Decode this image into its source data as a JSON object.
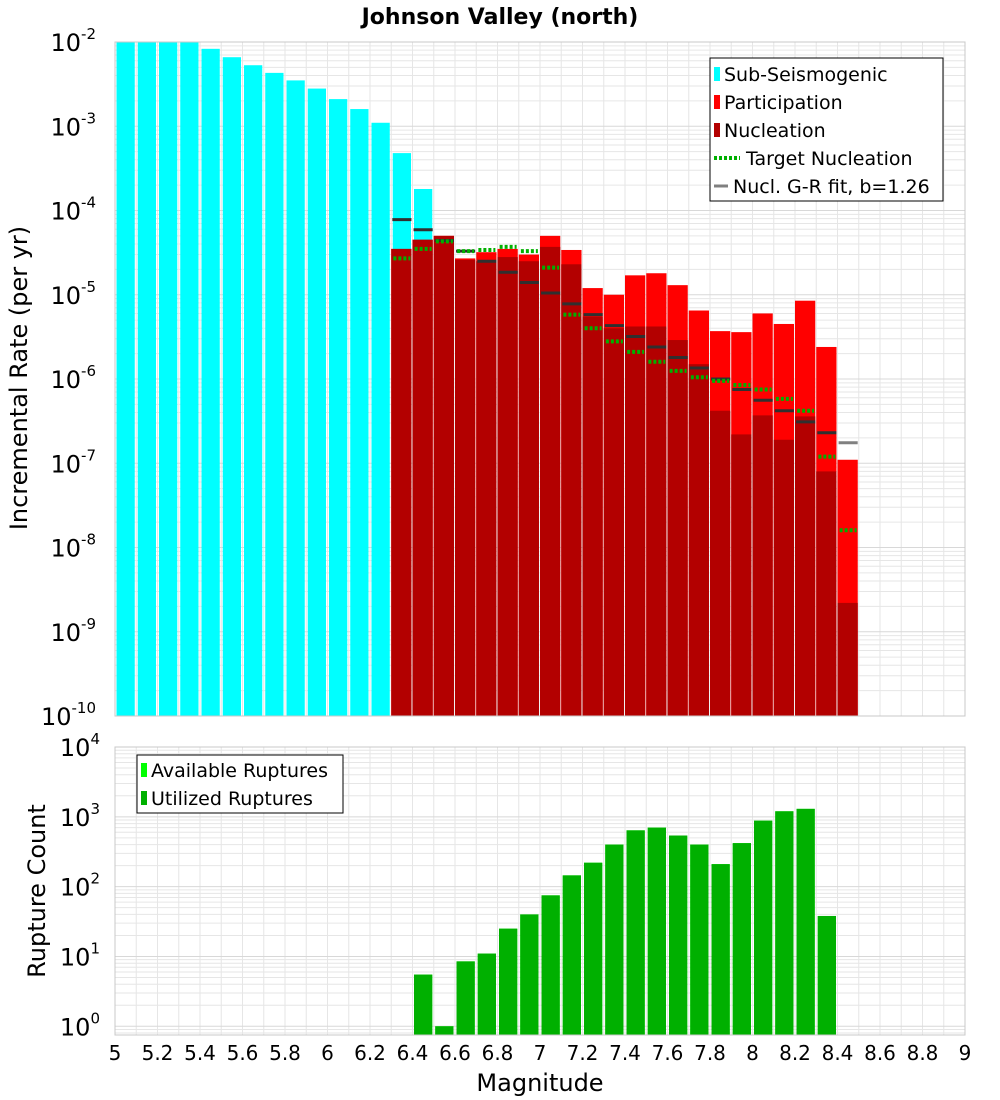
{
  "chart_data": [
    {
      "type": "bar",
      "title": "Johnson Valley (north)",
      "xlabel": "",
      "ylabel": "Incremental Rate (per yr)",
      "yscale": "log",
      "ylim": [
        1e-10,
        0.01
      ],
      "xlim": [
        5,
        9
      ],
      "legend_position": "top-right",
      "grid": true,
      "bin_width": 0.1,
      "series": [
        {
          "name": "Sub-Seismogenic",
          "color": "#00ffff",
          "x": [
            5.05,
            5.15,
            5.25,
            5.35,
            5.45,
            5.55,
            5.65,
            5.75,
            5.85,
            5.95,
            6.05,
            6.15,
            6.25,
            6.35,
            6.45
          ],
          "values": [
            0.01,
            0.01,
            0.01,
            0.01,
            0.0083,
            0.0066,
            0.0053,
            0.0043,
            0.0035,
            0.0028,
            0.0021,
            0.0016,
            0.0011,
            0.00048,
            0.00018
          ]
        },
        {
          "name": "Participation",
          "color": "#ff0000",
          "x": [
            6.35,
            6.45,
            6.55,
            6.65,
            6.75,
            6.85,
            6.95,
            7.05,
            7.15,
            7.25,
            7.35,
            7.45,
            7.55,
            7.65,
            7.75,
            7.85,
            7.95,
            8.05,
            8.15,
            8.25,
            8.35,
            8.45
          ],
          "values": [
            3.5e-05,
            4.5e-05,
            5e-05,
            2.7e-05,
            3.2e-05,
            3.5e-05,
            3e-05,
            5e-05,
            3.4e-05,
            1.2e-05,
            1e-05,
            1.7e-05,
            1.8e-05,
            1.3e-05,
            6.5e-06,
            3.7e-06,
            3.6e-06,
            6e-06,
            4.5e-06,
            8.5e-06,
            2.4e-06,
            1.1e-07
          ]
        },
        {
          "name": "Nucleation",
          "color": "#b30000",
          "x": [
            6.35,
            6.45,
            6.55,
            6.65,
            6.75,
            6.85,
            6.95,
            7.05,
            7.15,
            7.25,
            7.35,
            7.45,
            7.55,
            7.65,
            7.75,
            7.85,
            7.95,
            8.05,
            8.15,
            8.25,
            8.35,
            8.45
          ],
          "values": [
            3.5e-05,
            4.5e-05,
            5e-05,
            2.6e-05,
            2.5e-05,
            2.8e-05,
            2.5e-05,
            3.7e-05,
            2.3e-05,
            5.5e-06,
            4e-06,
            4.2e-06,
            4.2e-06,
            2.9e-06,
            1.5e-06,
            4.2e-07,
            2.2e-07,
            3.7e-07,
            1.9e-07,
            3.6e-07,
            8e-08,
            2.2e-09
          ]
        },
        {
          "name": "Target Nucleation",
          "color": "#00b000",
          "style": "dotted",
          "x": [
            6.35,
            6.45,
            6.55,
            6.65,
            6.75,
            6.85,
            6.95,
            7.05,
            7.15,
            7.25,
            7.35,
            7.45,
            7.55,
            7.65,
            7.75,
            7.85,
            7.95,
            8.05,
            8.15,
            8.25,
            8.35,
            8.45
          ],
          "values": [
            2.7e-05,
            3.5e-05,
            4.3e-05,
            3.3e-05,
            3.4e-05,
            3.7e-05,
            3.3e-05,
            2.1e-05,
            5.8e-06,
            4e-06,
            2.8e-06,
            2.1e-06,
            1.6e-06,
            1.25e-06,
            1.05e-06,
            9.5e-07,
            8.5e-07,
            7.5e-07,
            5.8e-07,
            4.2e-07,
            1.2e-07,
            1.6e-08
          ]
        },
        {
          "name": "Nucl. G-R fit, b=1.26",
          "color": "#808080",
          "style": "solid",
          "x": [
            6.35,
            6.45,
            6.55,
            6.65,
            6.75,
            6.85,
            6.95,
            7.05,
            7.15,
            7.25,
            7.35,
            7.45,
            7.55,
            7.65,
            7.75,
            7.85,
            7.95,
            8.05,
            8.15,
            8.25,
            8.35,
            8.45
          ],
          "values": [
            7.8e-05,
            5.9e-05,
            4.4e-05,
            3.3e-05,
            2.5e-05,
            1.85e-05,
            1.4e-05,
            1.05e-05,
            7.8e-06,
            5.8e-06,
            4.3e-06,
            3.2e-06,
            2.4e-06,
            1.8e-06,
            1.35e-06,
            1e-06,
            7.5e-07,
            5.6e-07,
            4.2e-07,
            3.1e-07,
            2.3e-07,
            1.75e-07
          ]
        }
      ]
    },
    {
      "type": "bar",
      "title": "",
      "xlabel": "Magnitude",
      "ylabel": "Rupture Count",
      "yscale": "log",
      "ylim": [
        0.75,
        10000
      ],
      "xlim": [
        5,
        9
      ],
      "xticks": [
        "5",
        "5.2",
        "5.4",
        "5.6",
        "5.8",
        "6",
        "6.2",
        "6.4",
        "6.6",
        "6.8",
        "7",
        "7.2",
        "7.4",
        "7.6",
        "7.8",
        "8",
        "8.2",
        "8.4",
        "8.6",
        "8.8",
        "9"
      ],
      "legend_position": "top-left",
      "grid": true,
      "bin_width": 0.1,
      "series": [
        {
          "name": "Available Ruptures",
          "color": "#00ff00",
          "x": [
            6.45,
            6.55,
            6.65,
            6.75,
            6.85,
            6.95,
            7.05,
            7.15,
            7.25,
            7.35,
            7.45,
            7.55,
            7.65,
            7.75,
            7.85,
            7.95,
            8.05,
            8.15,
            8.25,
            8.35
          ],
          "values": [
            5.5,
            1,
            8.5,
            11,
            25,
            40,
            75,
            145,
            220,
            400,
            640,
            700,
            540,
            400,
            210,
            420,
            880,
            1200,
            1300,
            38
          ]
        },
        {
          "name": "Utilized Ruptures",
          "color": "#00b000",
          "x": [
            6.45,
            6.55,
            6.65,
            6.75,
            6.85,
            6.95,
            7.05,
            7.15,
            7.25,
            7.35,
            7.45,
            7.55,
            7.65,
            7.75,
            7.85,
            7.95,
            8.05,
            8.15,
            8.25,
            8.35
          ],
          "values": [
            5.5,
            1,
            8.5,
            11,
            25,
            40,
            75,
            145,
            220,
            400,
            640,
            700,
            540,
            400,
            210,
            420,
            880,
            1200,
            1300,
            38
          ]
        }
      ]
    }
  ]
}
